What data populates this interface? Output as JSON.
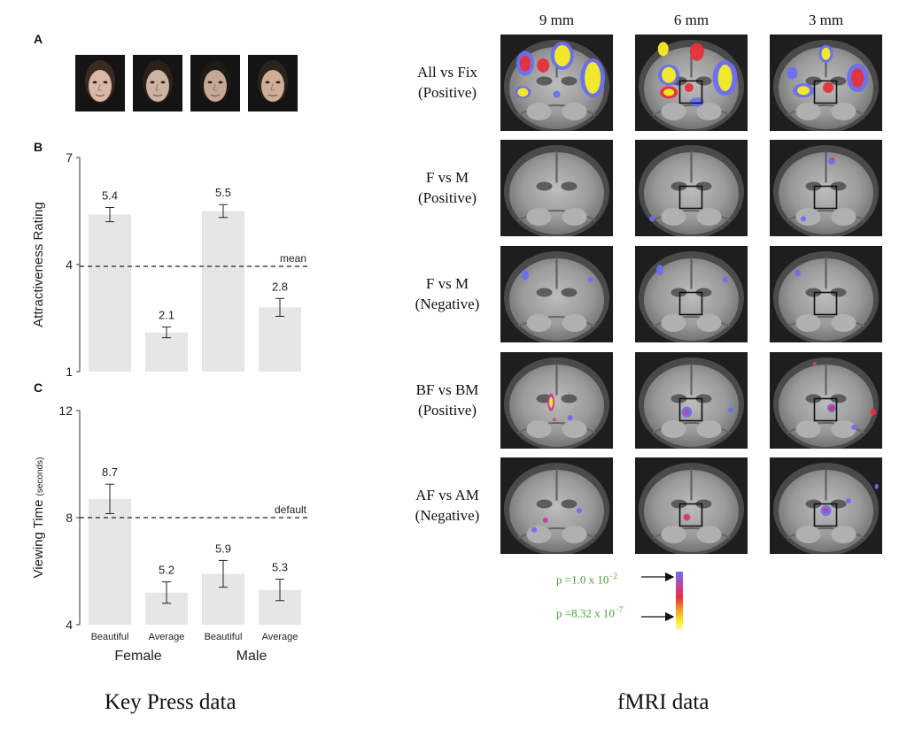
{
  "panel_letters": {
    "a": "A",
    "b": "B",
    "c": "C"
  },
  "faces": [
    {
      "name": "female-face-1"
    },
    {
      "name": "female-face-2"
    },
    {
      "name": "male-face-1"
    },
    {
      "name": "male-face-2"
    }
  ],
  "chart_data": [
    {
      "type": "bar",
      "ylabel": "Attractiveness Rating",
      "ylim": [
        1,
        7
      ],
      "yticks": [
        "1",
        "4",
        "7"
      ],
      "categories": [
        "Beautiful",
        "Average",
        "Beautiful",
        "Average"
      ],
      "groups": [
        "Female",
        "Male"
      ],
      "values": [
        5.4,
        2.1,
        5.5,
        2.8
      ],
      "errors": [
        0.2,
        0.15,
        0.18,
        0.25
      ],
      "value_labels": [
        "5.4",
        "2.1",
        "5.5",
        "2.8"
      ],
      "reference_line": {
        "value": 3.95,
        "label": "mean"
      },
      "grid": false
    },
    {
      "type": "bar",
      "ylabel": "Viewing Time",
      "ylabel_unit": "(seconds)",
      "ylim": [
        4,
        12
      ],
      "yticks": [
        "4",
        "8",
        "12"
      ],
      "categories": [
        "Beautiful",
        "Average",
        "Beautiful",
        "Average"
      ],
      "groups": [
        "Female",
        "Male"
      ],
      "values": [
        8.7,
        5.2,
        5.9,
        5.3
      ],
      "errors": [
        0.55,
        0.4,
        0.5,
        0.4
      ],
      "value_labels": [
        "8.7",
        "5.2",
        "5.9",
        "5.3"
      ],
      "reference_line": {
        "value": 8.0,
        "label": "default"
      },
      "grid": false
    }
  ],
  "x_tick_labels": [
    "Beautiful",
    "Average",
    "Beautiful",
    "Average"
  ],
  "group_labels": [
    "Female",
    "Male"
  ],
  "captions": {
    "left": "Key Press data",
    "right": "fMRI data"
  },
  "fmri": {
    "columns": [
      "9 mm",
      "6 mm",
      "3 mm"
    ],
    "rows": [
      {
        "line1": "All vs Fix",
        "line2": "(Positive)"
      },
      {
        "line1": "F vs M",
        "line2": "(Positive)"
      },
      {
        "line1": "F vs M",
        "line2": "(Negative)"
      },
      {
        "line1": "BF vs BM",
        "line2": "(Positive)"
      },
      {
        "line1": "AF vs AM",
        "line2": "(Negative)"
      }
    ],
    "roi_box": [
      [
        false,
        true,
        true
      ],
      [
        false,
        true,
        true
      ],
      [
        false,
        true,
        true
      ],
      [
        false,
        true,
        true
      ],
      [
        false,
        true,
        true
      ]
    ]
  },
  "colorbar": {
    "p_high": "p =1.0 x 10",
    "p_high_exp": "−2",
    "p_low": "p =8.32 x 10",
    "p_low_exp": "−7",
    "colors": {
      "blue": "#6a6ff0",
      "magenta": "#c8409a",
      "red": "#e8303a",
      "orange": "#f39a1e",
      "yellow": "#f7ee22",
      "pale": "#f8f8c8"
    }
  }
}
